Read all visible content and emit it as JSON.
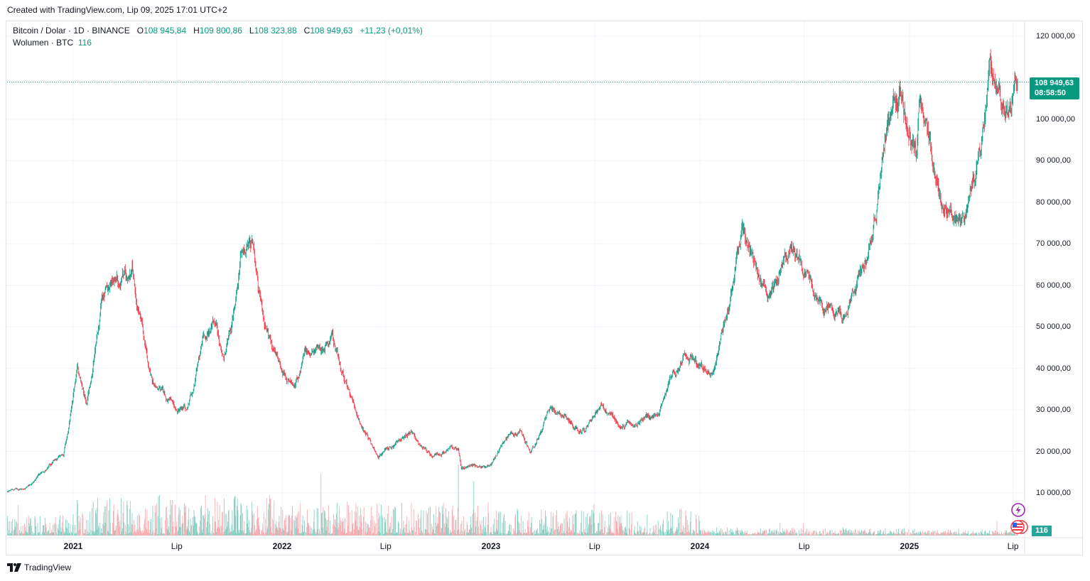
{
  "header": {
    "created": "Created with TradingView.com, Lip 09, 2025 17:01 UTC+2"
  },
  "legend": {
    "symbol": "Bitcoin / Dolar · 1D · BINANCE",
    "o_label": "O",
    "o": "108 945,84",
    "h_label": "H",
    "h": "109 800,86",
    "l_label": "L",
    "l": "108 323,88",
    "c_label": "C",
    "c": "108 949,63",
    "change": "+11,23 (+0,01%)",
    "volume_label": "Wolumen · BTC",
    "volume": "116"
  },
  "price_label": {
    "price": "108 949,63",
    "countdown": "08:58:50"
  },
  "volume_label": "116",
  "footer": {
    "brand": "TradingView"
  },
  "colors": {
    "up": "#089981",
    "down": "#f23645",
    "up_vol": "#7fcbbf",
    "down_vol": "#f7a7ad",
    "grid": "#f0f3fa"
  },
  "chart_data": {
    "type": "candlestick",
    "title": "Bitcoin / Dolar · 1D · BINANCE",
    "y_ticks": [
      "120 000,00",
      "100 000,00",
      "90 000,00",
      "80 000,00",
      "70 000,00",
      "60 000,00",
      "50 000,00",
      "40 000,00",
      "30 000,00",
      "20 000,00",
      "10 000,00"
    ],
    "y_tick_values": [
      120000,
      100000,
      90000,
      80000,
      70000,
      60000,
      50000,
      40000,
      30000,
      20000,
      10000
    ],
    "x_ticks": [
      {
        "label": "2021",
        "date": "2021-01-01",
        "year": true
      },
      {
        "label": "Lip",
        "date": "2021-07-01"
      },
      {
        "label": "2022",
        "date": "2022-01-01",
        "year": true
      },
      {
        "label": "Lip",
        "date": "2022-07-01"
      },
      {
        "label": "2023",
        "date": "2023-01-01",
        "year": true
      },
      {
        "label": "Lip",
        "date": "2023-07-01"
      },
      {
        "label": "2024",
        "date": "2024-01-01",
        "year": true
      },
      {
        "label": "Lip",
        "date": "2024-07-01"
      },
      {
        "label": "2025",
        "date": "2025-01-01",
        "year": true
      },
      {
        "label": "Lip",
        "date": "2025-07-01"
      }
    ],
    "last_price": 108949.63,
    "approx_path": [
      [
        "2020-09-08",
        10300
      ],
      [
        "2020-10-15",
        11500
      ],
      [
        "2020-11-15",
        16000
      ],
      [
        "2020-12-15",
        19500
      ],
      [
        "2021-01-08",
        40000
      ],
      [
        "2021-01-25",
        32000
      ],
      [
        "2021-02-20",
        56000
      ],
      [
        "2021-03-13",
        61000
      ],
      [
        "2021-04-14",
        64000
      ],
      [
        "2021-05-19",
        37000
      ],
      [
        "2021-06-22",
        31000
      ],
      [
        "2021-07-20",
        30000
      ],
      [
        "2021-08-15",
        47000
      ],
      [
        "2021-09-07",
        52000
      ],
      [
        "2021-09-21",
        41000
      ],
      [
        "2021-10-20",
        66000
      ],
      [
        "2021-11-10",
        68000
      ],
      [
        "2021-12-04",
        48000
      ],
      [
        "2022-01-22",
        35000
      ],
      [
        "2022-02-10",
        44000
      ],
      [
        "2022-03-29",
        47500
      ],
      [
        "2022-05-10",
        30000
      ],
      [
        "2022-06-18",
        19000
      ],
      [
        "2022-08-14",
        24500
      ],
      [
        "2022-09-20",
        19000
      ],
      [
        "2022-11-05",
        21000
      ],
      [
        "2022-11-10",
        16500
      ],
      [
        "2022-12-31",
        16500
      ],
      [
        "2023-01-20",
        22000
      ],
      [
        "2023-02-20",
        25000
      ],
      [
        "2023-03-10",
        20000
      ],
      [
        "2023-04-14",
        30500
      ],
      [
        "2023-06-15",
        25000
      ],
      [
        "2023-07-14",
        31000
      ],
      [
        "2023-08-17",
        26000
      ],
      [
        "2023-10-20",
        29000
      ],
      [
        "2023-11-10",
        37000
      ],
      [
        "2023-12-08",
        44000
      ],
      [
        "2024-01-23",
        39000
      ],
      [
        "2024-02-28",
        62000
      ],
      [
        "2024-03-14",
        73000
      ],
      [
        "2024-05-01",
        57000
      ],
      [
        "2024-06-06",
        71000
      ],
      [
        "2024-08-05",
        54000
      ],
      [
        "2024-09-06",
        53500
      ],
      [
        "2024-10-29",
        72000
      ],
      [
        "2024-11-22",
        99000
      ],
      [
        "2024-12-17",
        106000
      ],
      [
        "2025-01-13",
        91000
      ],
      [
        "2025-01-21",
        106000
      ],
      [
        "2025-02-27",
        80000
      ],
      [
        "2025-04-08",
        76000
      ],
      [
        "2025-05-22",
        111000
      ],
      [
        "2025-06-22",
        100000
      ],
      [
        "2025-07-09",
        108950
      ]
    ],
    "volume_level_by_year": {
      "2020": 0.25,
      "2021": 0.55,
      "2022": 0.45,
      "2023": 0.35,
      "2024": 0.08,
      "2025": 0.07
    }
  }
}
